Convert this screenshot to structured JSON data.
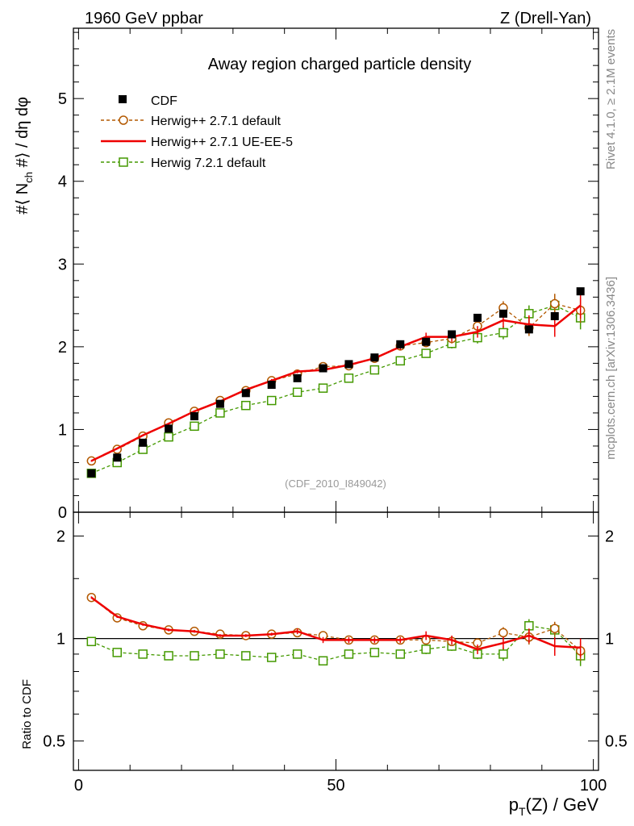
{
  "header": {
    "left": "1960 GeV ppbar",
    "right": "Z (Drell-Yan)"
  },
  "side_labels": {
    "rivet": "Rivet 4.1.0, ≥ 2.1M events",
    "mcplots": "mcplots.cern.ch [arXiv:1306.3436]"
  },
  "chart_data": [
    {
      "type": "line",
      "title": "Away region charged particle density",
      "analysis_id": "(CDF_2010_I849042)",
      "ylabel": "#⟨ N_ch #⟩ / dη dφ",
      "ylabel_parts": {
        "a": "#⟨ N",
        "sub": "ch",
        "b": " #⟩ / dη dφ"
      },
      "xlim": [
        -1,
        101
      ],
      "ylim": [
        0,
        5.85
      ],
      "yticks": [
        0,
        1,
        2,
        3,
        4,
        5
      ],
      "ytick_labels": [
        "0",
        "1",
        "2",
        "3",
        "4",
        "5"
      ],
      "x": [
        2.5,
        7.5,
        12.5,
        17.5,
        22.5,
        27.5,
        32.5,
        37.5,
        42.5,
        47.5,
        52.5,
        57.5,
        62.5,
        67.5,
        72.5,
        77.5,
        82.5,
        87.5,
        92.5,
        97.5
      ],
      "legend": [
        "CDF",
        "Herwig++ 2.7.1 default",
        "Herwig++ 2.7.1 UE-EE-5",
        "Herwig 7.2.1 default"
      ],
      "series": [
        {
          "name": "CDF",
          "color": "#000000",
          "style": "marker-square-filled",
          "values": [
            0.47,
            0.66,
            0.84,
            1.01,
            1.16,
            1.31,
            1.44,
            1.54,
            1.62,
            1.74,
            1.79,
            1.87,
            2.03,
            2.06,
            2.15,
            2.35,
            2.4,
            2.21,
            2.37,
            2.67
          ]
        },
        {
          "name": "Herwig++ 2.7.1 default",
          "color": "#b35900",
          "style": "dashed-circle",
          "values": [
            0.62,
            0.76,
            0.92,
            1.08,
            1.22,
            1.35,
            1.47,
            1.59,
            1.67,
            1.76,
            1.77,
            1.86,
            2.01,
            2.05,
            2.1,
            2.25,
            2.47,
            2.23,
            2.52,
            2.44
          ],
          "errors": [
            0.01,
            0.01,
            0.01,
            0.01,
            0.01,
            0.01,
            0.01,
            0.02,
            0.02,
            0.02,
            0.02,
            0.03,
            0.04,
            0.05,
            0.06,
            0.07,
            0.08,
            0.1,
            0.12,
            0.15
          ]
        },
        {
          "name": "Herwig++ 2.7.1 UE-EE-5",
          "color": "#ee0000",
          "style": "solid",
          "values": [
            0.62,
            0.77,
            0.93,
            1.07,
            1.22,
            1.34,
            1.48,
            1.59,
            1.7,
            1.72,
            1.78,
            1.86,
            2.0,
            2.12,
            2.12,
            2.18,
            2.32,
            2.27,
            2.25,
            2.5
          ],
          "errors": [
            0.01,
            0.01,
            0.01,
            0.01,
            0.01,
            0.01,
            0.01,
            0.02,
            0.02,
            0.02,
            0.02,
            0.03,
            0.04,
            0.05,
            0.06,
            0.07,
            0.09,
            0.11,
            0.13,
            0.16
          ]
        },
        {
          "name": "Herwig 7.2.1 default",
          "color": "#449900",
          "style": "dashed-square-open",
          "values": [
            0.47,
            0.6,
            0.76,
            0.91,
            1.04,
            1.2,
            1.29,
            1.35,
            1.45,
            1.5,
            1.62,
            1.72,
            1.83,
            1.92,
            2.04,
            2.11,
            2.17,
            2.4,
            2.5,
            2.35
          ],
          "errors": [
            0.01,
            0.01,
            0.01,
            0.01,
            0.01,
            0.01,
            0.01,
            0.02,
            0.02,
            0.02,
            0.02,
            0.03,
            0.04,
            0.05,
            0.06,
            0.07,
            0.08,
            0.1,
            0.12,
            0.14
          ]
        }
      ]
    },
    {
      "type": "line",
      "title": "",
      "ylabel": "Ratio to CDF",
      "xlabel": "p_T(Z) / GeV",
      "xlabel_parts": {
        "a": "p",
        "sub": "T",
        "b": "(Z) / GeV"
      },
      "xlim": [
        -1,
        101
      ],
      "xticks": [
        0,
        50,
        100
      ],
      "xtick_labels": [
        "0",
        "50",
        "100"
      ],
      "ylim": [
        0.41,
        2.35
      ],
      "yscale": "log",
      "yticks": [
        0.5,
        1,
        2
      ],
      "ytick_labels": [
        "0.5",
        "1",
        "2"
      ],
      "reference_line": 1,
      "series": [
        {
          "name": "Herwig++ 2.7.1 default",
          "color": "#b35900",
          "style": "dashed-circle",
          "values": [
            1.32,
            1.15,
            1.09,
            1.06,
            1.05,
            1.03,
            1.02,
            1.03,
            1.04,
            1.02,
            0.99,
            0.99,
            0.99,
            0.99,
            0.98,
            0.97,
            1.04,
            1.01,
            1.07,
            0.92
          ],
          "errors": [
            0.01,
            0.01,
            0.01,
            0.01,
            0.01,
            0.01,
            0.01,
            0.01,
            0.02,
            0.02,
            0.02,
            0.02,
            0.02,
            0.03,
            0.03,
            0.03,
            0.04,
            0.05,
            0.05,
            0.06
          ]
        },
        {
          "name": "Herwig++ 2.7.1 UE-EE-5",
          "color": "#ee0000",
          "style": "solid",
          "values": [
            1.32,
            1.16,
            1.1,
            1.06,
            1.05,
            1.02,
            1.02,
            1.03,
            1.05,
            0.99,
            0.99,
            0.99,
            0.99,
            1.02,
            0.99,
            0.93,
            0.97,
            1.02,
            0.95,
            0.94
          ],
          "errors": [
            0.01,
            0.01,
            0.01,
            0.01,
            0.01,
            0.01,
            0.01,
            0.01,
            0.02,
            0.02,
            0.02,
            0.02,
            0.02,
            0.03,
            0.03,
            0.03,
            0.04,
            0.05,
            0.06,
            0.06
          ]
        },
        {
          "name": "Herwig 7.2.1 default",
          "color": "#449900",
          "style": "dashed-square-open",
          "values": [
            0.98,
            0.91,
            0.9,
            0.89,
            0.89,
            0.9,
            0.89,
            0.88,
            0.9,
            0.86,
            0.9,
            0.91,
            0.9,
            0.93,
            0.95,
            0.9,
            0.9,
            1.09,
            1.06,
            0.89
          ],
          "errors": [
            0.01,
            0.01,
            0.01,
            0.01,
            0.01,
            0.01,
            0.01,
            0.01,
            0.02,
            0.02,
            0.02,
            0.02,
            0.02,
            0.03,
            0.03,
            0.03,
            0.04,
            0.05,
            0.05,
            0.06
          ]
        }
      ]
    }
  ]
}
